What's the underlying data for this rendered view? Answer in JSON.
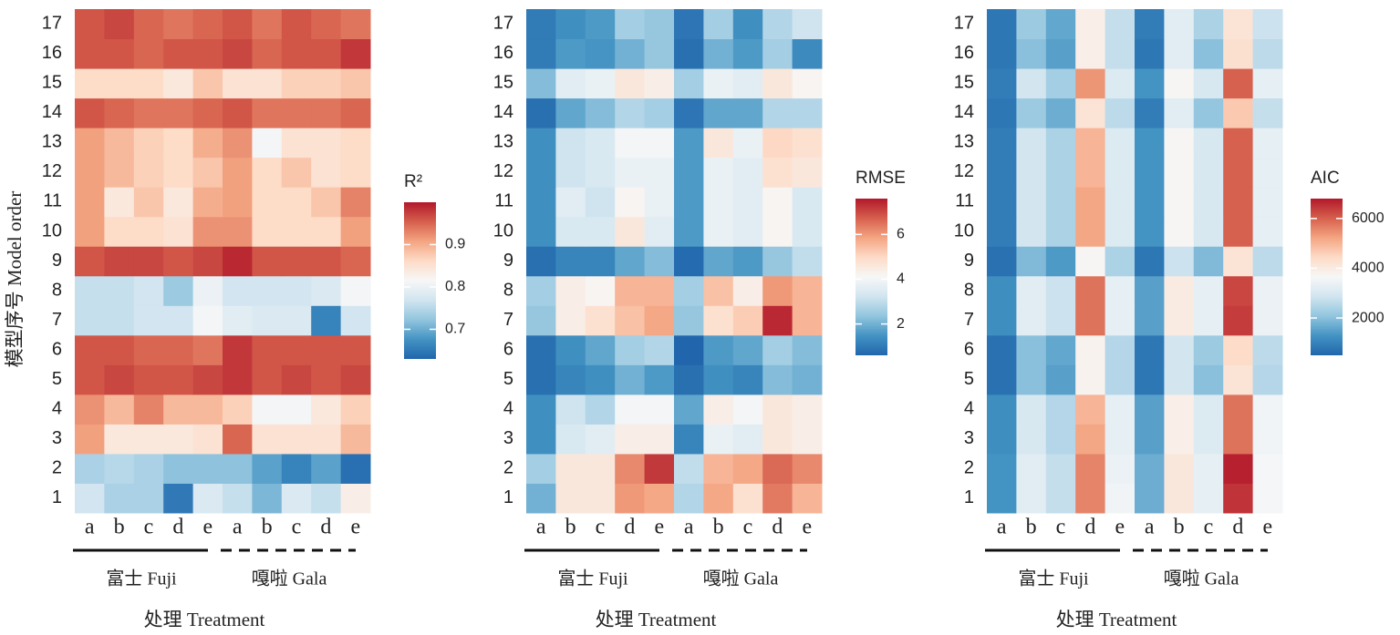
{
  "chart_data": [
    {
      "type": "heatmap",
      "x": [
        "a",
        "b",
        "c",
        "d",
        "e",
        "a",
        "b",
        "c",
        "d",
        "e"
      ],
      "groups": [
        "富士 Fuji",
        "嘎啦 Gala"
      ],
      "y": [
        "1",
        "2",
        "3",
        "4",
        "5",
        "6",
        "7",
        "8",
        "9",
        "10",
        "11",
        "12",
        "13",
        "14",
        "15",
        "16",
        "17"
      ],
      "xlabel": "处理 Treatment",
      "ylabel": "模型序号 Model order",
      "colormap": [
        "#2166ac",
        "#4393c3",
        "#92c5de",
        "#d1e5f0",
        "#f7f7f7",
        "#fddbc7",
        "#f4a582",
        "#d6604d",
        "#b2182b"
      ],
      "colorbar": {
        "title": "R²",
        "lim": [
          0.63,
          1.0
        ],
        "ticks": [
          0.7,
          0.8,
          0.9
        ]
      },
      "values": [
        [
          0.77,
          0.74,
          0.74,
          0.65,
          0.78,
          0.76,
          0.71,
          0.78,
          0.76,
          0.83
        ],
        [
          0.74,
          0.75,
          0.74,
          0.72,
          0.72,
          0.72,
          0.69,
          0.66,
          0.69,
          0.64
        ],
        [
          0.91,
          0.84,
          0.84,
          0.84,
          0.85,
          0.95,
          0.85,
          0.85,
          0.85,
          0.89
        ],
        [
          0.92,
          0.89,
          0.93,
          0.89,
          0.89,
          0.87,
          0.81,
          0.81,
          0.84,
          0.87
        ],
        [
          0.96,
          0.97,
          0.96,
          0.96,
          0.97,
          0.98,
          0.96,
          0.97,
          0.96,
          0.97
        ],
        [
          0.96,
          0.96,
          0.95,
          0.95,
          0.94,
          0.98,
          0.96,
          0.96,
          0.96,
          0.96
        ],
        [
          0.76,
          0.76,
          0.77,
          0.77,
          0.81,
          0.79,
          0.78,
          0.78,
          0.66,
          0.77
        ],
        [
          0.76,
          0.76,
          0.77,
          0.73,
          0.8,
          0.77,
          0.77,
          0.77,
          0.78,
          0.81
        ],
        [
          0.96,
          0.97,
          0.97,
          0.96,
          0.97,
          0.99,
          0.96,
          0.96,
          0.96,
          0.95
        ],
        [
          0.91,
          0.86,
          0.86,
          0.85,
          0.92,
          0.92,
          0.86,
          0.86,
          0.86,
          0.91
        ],
        [
          0.91,
          0.84,
          0.88,
          0.84,
          0.9,
          0.91,
          0.86,
          0.86,
          0.88,
          0.93
        ],
        [
          0.91,
          0.89,
          0.87,
          0.86,
          0.88,
          0.91,
          0.86,
          0.88,
          0.85,
          0.86
        ],
        [
          0.91,
          0.89,
          0.87,
          0.86,
          0.9,
          0.92,
          0.81,
          0.85,
          0.85,
          0.86
        ],
        [
          0.96,
          0.95,
          0.94,
          0.94,
          0.95,
          0.96,
          0.94,
          0.94,
          0.94,
          0.95
        ],
        [
          0.86,
          0.86,
          0.86,
          0.84,
          0.88,
          0.85,
          0.85,
          0.87,
          0.87,
          0.88
        ],
        [
          0.96,
          0.96,
          0.95,
          0.96,
          0.96,
          0.97,
          0.95,
          0.96,
          0.96,
          0.98
        ],
        [
          0.96,
          0.97,
          0.95,
          0.94,
          0.95,
          0.96,
          0.94,
          0.96,
          0.95,
          0.94
        ]
      ]
    },
    {
      "type": "heatmap",
      "x": [
        "a",
        "b",
        "c",
        "d",
        "e",
        "a",
        "b",
        "c",
        "d",
        "e"
      ],
      "groups": [
        "富士 Fuji",
        "嘎啦 Gala"
      ],
      "y": [
        "1",
        "2",
        "3",
        "4",
        "5",
        "6",
        "7",
        "8",
        "9",
        "10",
        "11",
        "12",
        "13",
        "14",
        "15",
        "16",
        "17"
      ],
      "xlabel": "处理 Treatment",
      "colormap": [
        "#2166ac",
        "#4393c3",
        "#92c5de",
        "#d1e5f0",
        "#f7f7f7",
        "#fddbc7",
        "#f4a582",
        "#d6604d",
        "#b2182b"
      ],
      "colorbar": {
        "title": "RMSE",
        "lim": [
          0.6,
          7.6
        ],
        "ticks": [
          2,
          4,
          6
        ]
      },
      "values": [
        [
          2.0,
          4.6,
          4.6,
          6.0,
          5.8,
          2.8,
          5.8,
          4.8,
          6.4,
          5.6
        ],
        [
          2.6,
          4.6,
          4.6,
          6.2,
          7.2,
          3.0,
          5.6,
          5.8,
          6.6,
          6.2
        ],
        [
          1.4,
          3.4,
          3.6,
          4.4,
          4.4,
          1.2,
          3.8,
          3.6,
          4.6,
          4.4
        ],
        [
          1.4,
          3.2,
          2.8,
          4.0,
          4.0,
          1.8,
          4.4,
          4.0,
          4.6,
          4.4
        ],
        [
          0.8,
          1.2,
          1.4,
          2.0,
          1.6,
          0.8,
          1.4,
          1.2,
          2.2,
          2.0
        ],
        [
          0.8,
          1.4,
          1.8,
          2.6,
          2.8,
          0.6,
          1.6,
          1.8,
          2.6,
          2.2
        ],
        [
          2.4,
          4.4,
          4.8,
          5.4,
          5.8,
          2.4,
          4.8,
          5.2,
          7.4,
          5.6
        ],
        [
          2.6,
          4.4,
          4.2,
          5.6,
          5.6,
          2.6,
          5.4,
          4.4,
          6.0,
          5.6
        ],
        [
          0.8,
          1.2,
          1.2,
          1.8,
          2.2,
          0.7,
          1.8,
          1.6,
          2.4,
          3.0
        ],
        [
          1.4,
          3.4,
          3.4,
          4.6,
          3.6,
          1.6,
          3.8,
          3.6,
          4.2,
          3.4
        ],
        [
          1.4,
          3.6,
          3.2,
          4.2,
          3.8,
          1.6,
          3.8,
          3.6,
          4.2,
          3.4
        ],
        [
          1.4,
          3.2,
          3.4,
          3.8,
          3.8,
          1.6,
          3.8,
          3.6,
          4.8,
          4.6
        ],
        [
          1.4,
          3.2,
          3.4,
          4.0,
          4.0,
          1.6,
          4.6,
          3.8,
          5.0,
          4.8
        ],
        [
          0.8,
          1.8,
          2.2,
          2.8,
          2.6,
          0.9,
          1.8,
          1.8,
          2.8,
          2.8
        ],
        [
          2.2,
          3.6,
          3.8,
          4.6,
          4.4,
          2.6,
          3.8,
          3.6,
          4.6,
          4.2
        ],
        [
          1.0,
          1.6,
          1.5,
          2.0,
          2.4,
          0.8,
          2.0,
          1.6,
          2.6,
          1.3
        ],
        [
          1.0,
          1.4,
          1.6,
          2.6,
          2.4,
          0.9,
          2.6,
          1.4,
          2.8,
          3.2
        ]
      ]
    },
    {
      "type": "heatmap",
      "x": [
        "a",
        "b",
        "c",
        "d",
        "e",
        "a",
        "b",
        "c",
        "d",
        "e"
      ],
      "groups": [
        "富士 Fuji",
        "嘎啦 Gala"
      ],
      "y": [
        "1",
        "2",
        "3",
        "4",
        "5",
        "6",
        "7",
        "8",
        "9",
        "10",
        "11",
        "12",
        "13",
        "14",
        "15",
        "16",
        "17"
      ],
      "xlabel": "处理 Treatment",
      "colormap": [
        "#2166ac",
        "#4393c3",
        "#92c5de",
        "#d1e5f0",
        "#f7f7f7",
        "#fddbc7",
        "#f4a582",
        "#d6604d",
        "#b2182b"
      ],
      "colorbar": {
        "title": "AIC",
        "lim": [
          500,
          6800
        ],
        "ticks": [
          2000,
          4000,
          6000
        ]
      },
      "values": [
        [
          1300,
          3200,
          2700,
          5600,
          3500,
          1700,
          4100,
          3300,
          6500,
          3600
        ],
        [
          1300,
          3200,
          2700,
          5600,
          3400,
          1700,
          4100,
          3300,
          6700,
          3600
        ],
        [
          1200,
          3000,
          2500,
          5200,
          3300,
          1500,
          3900,
          3100,
          5800,
          3500
        ],
        [
          1200,
          3000,
          2500,
          5000,
          3300,
          1500,
          3900,
          3100,
          5800,
          3500
        ],
        [
          700,
          2000,
          1500,
          3800,
          2500,
          800,
          2900,
          2000,
          4200,
          2500
        ],
        [
          700,
          2000,
          1600,
          3800,
          2500,
          800,
          2900,
          2200,
          4400,
          2600
        ],
        [
          1200,
          3200,
          2800,
          5800,
          3300,
          1500,
          4000,
          3300,
          6400,
          3400
        ],
        [
          1200,
          3200,
          2800,
          5800,
          3300,
          1500,
          4000,
          3300,
          6300,
          3400
        ],
        [
          700,
          1900,
          1400,
          3700,
          2400,
          800,
          2800,
          1900,
          4200,
          2600
        ],
        [
          900,
          2900,
          2400,
          5200,
          3100,
          1300,
          3700,
          3000,
          6000,
          3300
        ],
        [
          900,
          2900,
          2400,
          5200,
          3100,
          1300,
          3700,
          3000,
          6000,
          3300
        ],
        [
          900,
          2900,
          2400,
          5000,
          3100,
          1300,
          3700,
          3000,
          6000,
          3300
        ],
        [
          900,
          2900,
          2400,
          5000,
          3100,
          1300,
          3700,
          3000,
          6000,
          3300
        ],
        [
          800,
          2200,
          1700,
          4200,
          2600,
          900,
          3200,
          2100,
          4700,
          2700
        ],
        [
          900,
          2900,
          2300,
          5400,
          3100,
          1300,
          3700,
          3000,
          6000,
          3300
        ],
        [
          800,
          2000,
          1500,
          3900,
          2700,
          800,
          3200,
          2000,
          4300,
          2600
        ],
        [
          800,
          2200,
          1600,
          3900,
          2700,
          900,
          3200,
          2400,
          4200,
          2800
        ]
      ]
    }
  ]
}
